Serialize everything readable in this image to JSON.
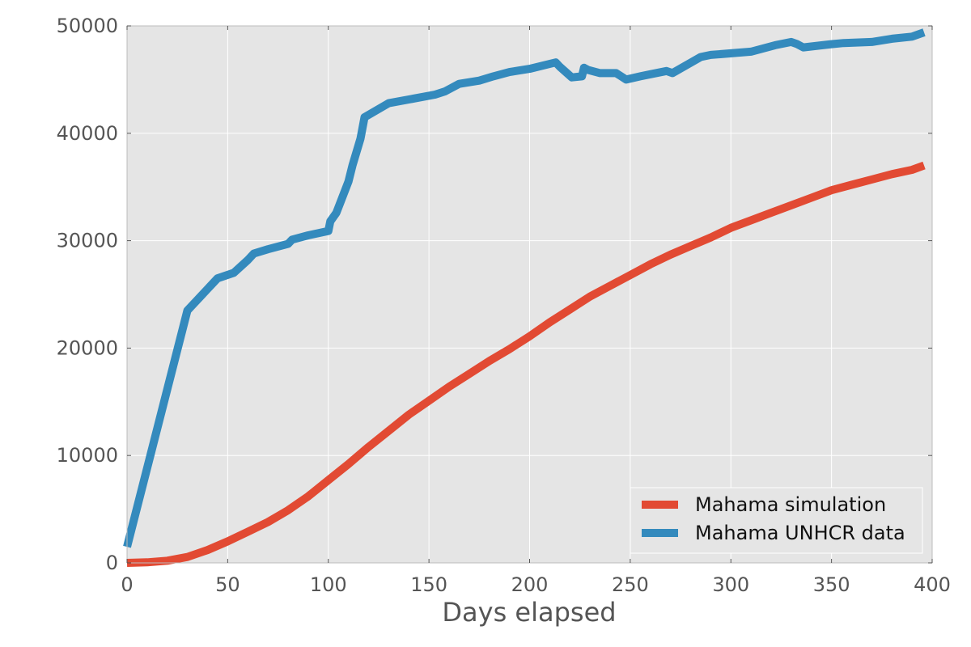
{
  "chart_data": {
    "type": "line",
    "title": "",
    "xlabel": "Days elapsed",
    "ylabel": "",
    "xlim": [
      0,
      400
    ],
    "ylim": [
      0,
      50000
    ],
    "xticks": [
      0,
      50,
      100,
      150,
      200,
      250,
      300,
      350,
      400
    ],
    "yticks": [
      0,
      10000,
      20000,
      30000,
      40000,
      50000
    ],
    "grid": true,
    "legend_position": "lower-right",
    "series": [
      {
        "name": "Mahama simulation",
        "color": "#e24a33",
        "x": [
          0,
          10,
          20,
          30,
          40,
          50,
          60,
          70,
          80,
          90,
          100,
          110,
          120,
          130,
          140,
          150,
          160,
          170,
          180,
          190,
          200,
          210,
          220,
          230,
          240,
          250,
          260,
          270,
          280,
          290,
          300,
          310,
          320,
          330,
          340,
          350,
          360,
          370,
          380,
          390,
          396
        ],
        "y": [
          0,
          50,
          200,
          550,
          1200,
          2000,
          2900,
          3800,
          4900,
          6200,
          7700,
          9200,
          10800,
          12300,
          13800,
          15100,
          16400,
          17600,
          18800,
          19900,
          21100,
          22400,
          23600,
          24800,
          25800,
          26800,
          27800,
          28700,
          29500,
          30300,
          31200,
          31900,
          32600,
          33300,
          34000,
          34700,
          35200,
          35700,
          36200,
          36600,
          37000
        ]
      },
      {
        "name": "Mahama UNHCR data",
        "color": "#348abd",
        "x": [
          0,
          30,
          45,
          53,
          60,
          63,
          70,
          80,
          82,
          90,
          100,
          101,
          104,
          110,
          112,
          116,
          118,
          130,
          153,
          158,
          165,
          175,
          182,
          190,
          200,
          213,
          215,
          221,
          226,
          227,
          229,
          235,
          243,
          248,
          255,
          260,
          268,
          271,
          285,
          290,
          310,
          322,
          330,
          333,
          336,
          350,
          356,
          370,
          380,
          390,
          396
        ],
        "y": [
          1500,
          23500,
          26500,
          27000,
          28200,
          28800,
          29200,
          29700,
          30100,
          30500,
          30900,
          31800,
          32600,
          35500,
          37000,
          39500,
          41500,
          42800,
          43600,
          43900,
          44600,
          44900,
          45300,
          45700,
          46000,
          46600,
          46200,
          45200,
          45300,
          46100,
          45900,
          45600,
          45600,
          45000,
          45300,
          45500,
          45800,
          45600,
          47100,
          47300,
          47600,
          48200,
          48500,
          48300,
          48000,
          48300,
          48400,
          48500,
          48800,
          49000,
          49400
        ]
      }
    ]
  }
}
